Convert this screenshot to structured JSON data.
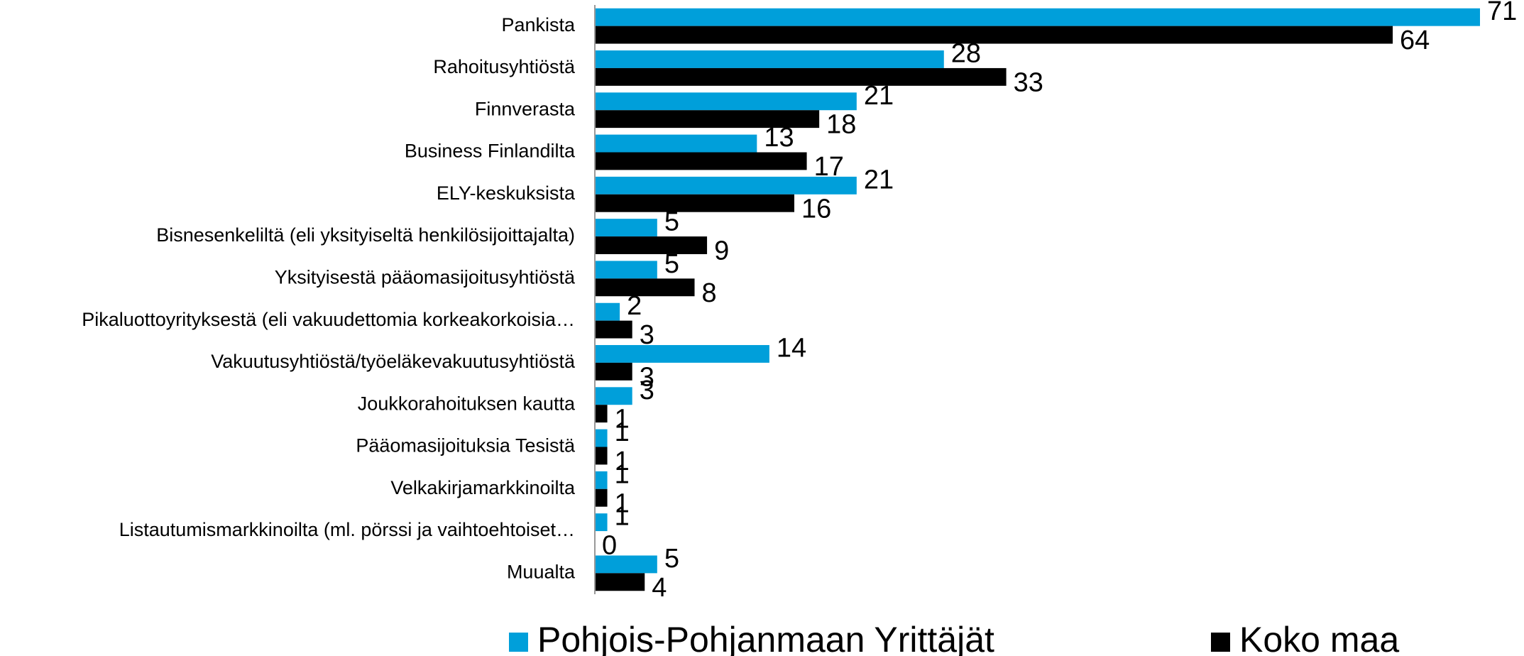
{
  "chart_data": {
    "type": "hbar",
    "categories": [
      "Pankista",
      "Rahoitusyhtiöstä",
      "Finnverasta",
      "Business Finlandilta",
      "ELY-keskuksista",
      "Bisnesenkeliltä (eli yksityiseltä henkilösijoittajalta)",
      "Yksityisestä pääomasijoitusyhtiöstä",
      "Pikaluottoyrityksestä (eli vakuudettomia korkeakorkoisia…",
      "Vakuutusyhtiöstä/työeläkevakuutusyhtiöstä",
      "Joukkorahoituksen kautta",
      "Pääomasijoituksia Tesistä",
      "Velkakirjamarkkinoilta",
      "Listautumismarkkinoilta (ml. pörssi ja vaihtoehtoiset…",
      "Muualta"
    ],
    "series": [
      {
        "name": "Pohjois-Pohjanmaan Yrittäjät",
        "color": "#009fda",
        "values": [
          71,
          28,
          21,
          13,
          21,
          5,
          5,
          2,
          14,
          3,
          1,
          1,
          1,
          5
        ]
      },
      {
        "name": "Koko maa",
        "color": "#000000",
        "values": [
          64,
          33,
          18,
          17,
          16,
          9,
          8,
          3,
          3,
          1,
          1,
          1,
          0,
          4
        ]
      }
    ],
    "legend": "bottom"
  }
}
